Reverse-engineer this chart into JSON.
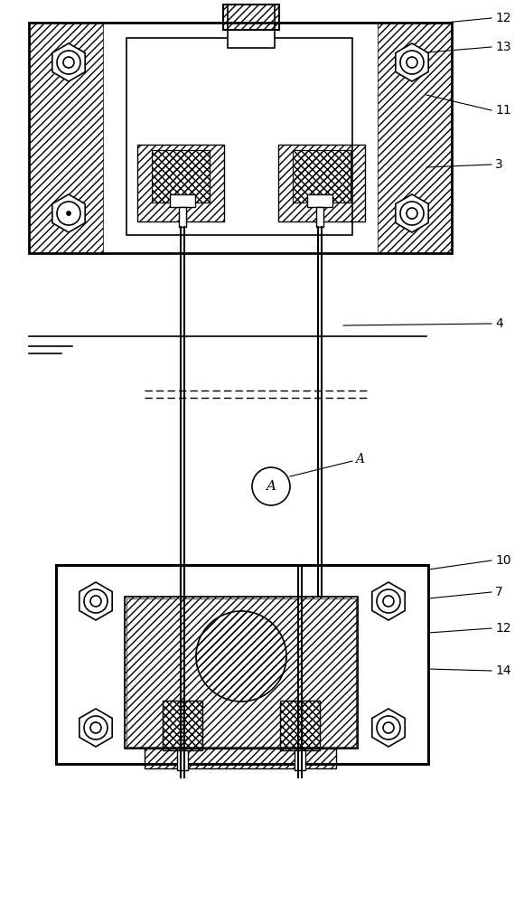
{
  "bg_color": "#ffffff",
  "line_color": "#000000"
}
